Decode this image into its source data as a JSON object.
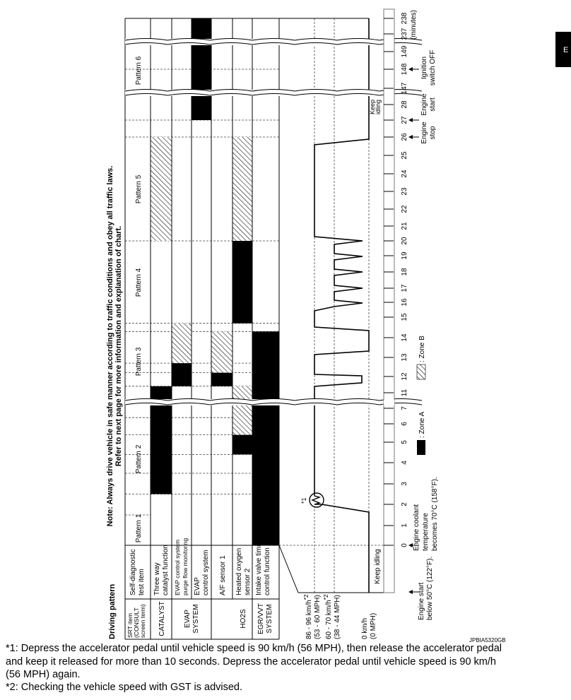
{
  "title": "Driving pattern",
  "note": {
    "line1": "Note: Always drive vehicle in safe manner according to traffic conditions and obey all traffic laws.",
    "line2": "Refer to next page for more information and explanation of chart."
  },
  "patterns": [
    "Pattern 1",
    "Pattern 2",
    "Pattern 3",
    "Pattern 4",
    "Pattern 5",
    "Pattern 6"
  ],
  "header": {
    "test_item": [
      "Self-diagnostic",
      "test item"
    ],
    "srt_item": [
      "SRT item",
      "(CONSULT",
      "screen term)"
    ]
  },
  "rows": [
    {
      "srt": [
        "CATALYST"
      ],
      "item": [
        "Three way",
        "catalyst function"
      ]
    },
    {
      "srt": [
        "EVAP",
        "SYSTEM"
      ],
      "item": [
        "EVAP control system",
        "purge flow monitoring"
      ]
    },
    {
      "srt": [],
      "item": [
        "EVAP",
        "control system"
      ]
    },
    {
      "srt": [
        "HO2S"
      ],
      "item": [
        "A/F sensor 1"
      ]
    },
    {
      "srt": [],
      "item": [
        "Heated oxygen",
        "sensor 2"
      ]
    },
    {
      "srt": [
        "EGR/VVT",
        "SYSTEM"
      ],
      "item": [
        "Intake valve timing",
        "control function"
      ]
    }
  ],
  "speeds": {
    "high": [
      "86 - 96 km/h",
      "(53 - 60 MPH)"
    ],
    "mid": [
      "60 - 70 km/h",
      "(38 - 44 MPH)"
    ],
    "zero": [
      "0 km/h",
      "(0 MPH)"
    ],
    "footnote_mark": "*2",
    "keep_idling": "Keep idling",
    "keep_idling_top": [
      "Keep",
      "idling"
    ],
    "circle_mark": "*1"
  },
  "time_axis": {
    "ticks": [
      "0",
      "1",
      "2",
      "3",
      "4",
      "5",
      "6",
      "7",
      "11",
      "12",
      "13",
      "14",
      "15",
      "16",
      "17",
      "18",
      "19",
      "20",
      "21",
      "22",
      "23",
      "24",
      "25",
      "26",
      "27",
      "28",
      "147",
      "148",
      "149",
      "237",
      "238"
    ],
    "unit": "(minutes)"
  },
  "annotations": {
    "engine_start_cold": [
      "Engine start",
      "below 50°C (122°F)."
    ],
    "coolant": [
      "Engine coolant",
      "temperature",
      "becomes 70°C (158°F)."
    ],
    "engine_stop": [
      "Engine",
      "stop"
    ],
    "engine_start": [
      "Engine",
      "start"
    ],
    "ignition_off": [
      "Ignition",
      "switch OFF"
    ]
  },
  "legend": {
    "zone_a": ": Zone A",
    "zone_b": ": Zone B"
  },
  "zones": [
    {
      "item": "Three way catalyst function",
      "zone": "A",
      "from": 2.5,
      "to": 11.4
    },
    {
      "item": "Three way catalyst function",
      "zone": "B",
      "from": 20,
      "to": 26
    },
    {
      "item": "EVAP control system purge flow monitoring",
      "zone": "A",
      "from": 11.4,
      "to": 12.7
    },
    {
      "item": "EVAP control system purge flow monitoring",
      "zone": "B",
      "from": 12.7,
      "to": 14.7
    },
    {
      "item": "EVAP control system",
      "zone": "A",
      "from": 27,
      "to": 238
    },
    {
      "item": "A/F sensor 1",
      "zone": "A",
      "from": 11.4,
      "to": 12.2
    },
    {
      "item": "A/F sensor 1",
      "zone": "B",
      "from": 12.2,
      "to": 14.3
    },
    {
      "item": "Heated oxygen sensor 2",
      "zone": "A",
      "from": 4.4,
      "to": 5.4
    },
    {
      "item": "Heated oxygen sensor 2",
      "zone": "B",
      "from": 5.4,
      "to": 11.4
    },
    {
      "item": "Heated oxygen sensor 2",
      "zone": "A",
      "from": 14.7,
      "to": 20
    },
    {
      "item": "Heated oxygen sensor 2",
      "zone": "B",
      "from": 20,
      "to": 26
    },
    {
      "item": "Intake valve timing control function",
      "zone": "A",
      "from": 0,
      "to": 14.3
    }
  ],
  "figure_id": "JPBIA5320GB",
  "side_tab": "E",
  "footnotes": [
    "*1: Depress the accelerator pedal until vehicle speed is 90 km/h (56 MPH), then release the accelerator pedal",
    "and keep it released for more than 10 seconds. Depress the accelerator pedal until vehicle speed is 90 km/h",
    "(56 MPH) again.",
    "*2: Checking the vehicle speed with GST is advised."
  ],
  "colors": {
    "zone_a": "#000000",
    "line": "#000000",
    "grid": "#555555"
  }
}
